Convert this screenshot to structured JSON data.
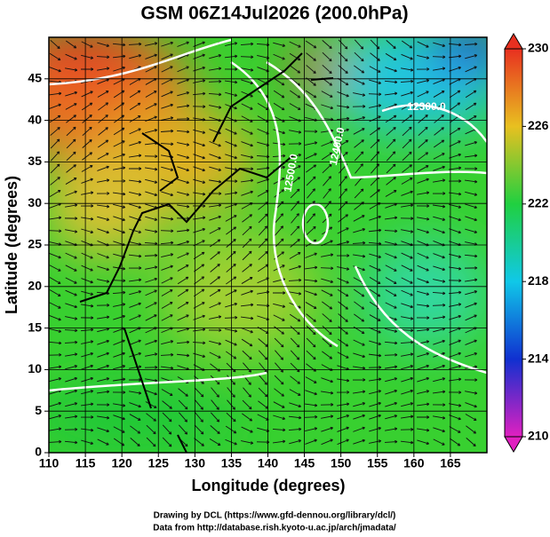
{
  "chart_data": {
    "type": "map",
    "title": "GSM 06Z14Jul2026 (200.0hPa)",
    "x_label": "Longitude (degrees)",
    "y_label": "Latitude  (degrees)",
    "xlim": [
      110,
      170
    ],
    "ylim": [
      0,
      50
    ],
    "xticks": [
      110,
      115,
      120,
      125,
      130,
      135,
      140,
      145,
      150,
      155,
      160,
      165
    ],
    "yticks": [
      0,
      5,
      10,
      15,
      20,
      25,
      30,
      35,
      40,
      45
    ],
    "grid": true,
    "colorbar": {
      "lim": [
        210,
        230
      ],
      "ticks": [
        210,
        214,
        218,
        222,
        226,
        230
      ]
    },
    "contour_labels": [
      "12300.0",
      "12400.0",
      "12500.0"
    ],
    "credits": [
      "Drawing by DCL (https://www.gfd-dennou.org/library/dcl/)",
      "Data from http://database.rish.kyoto-u.ac.jp/arch/jmadata/"
    ]
  }
}
